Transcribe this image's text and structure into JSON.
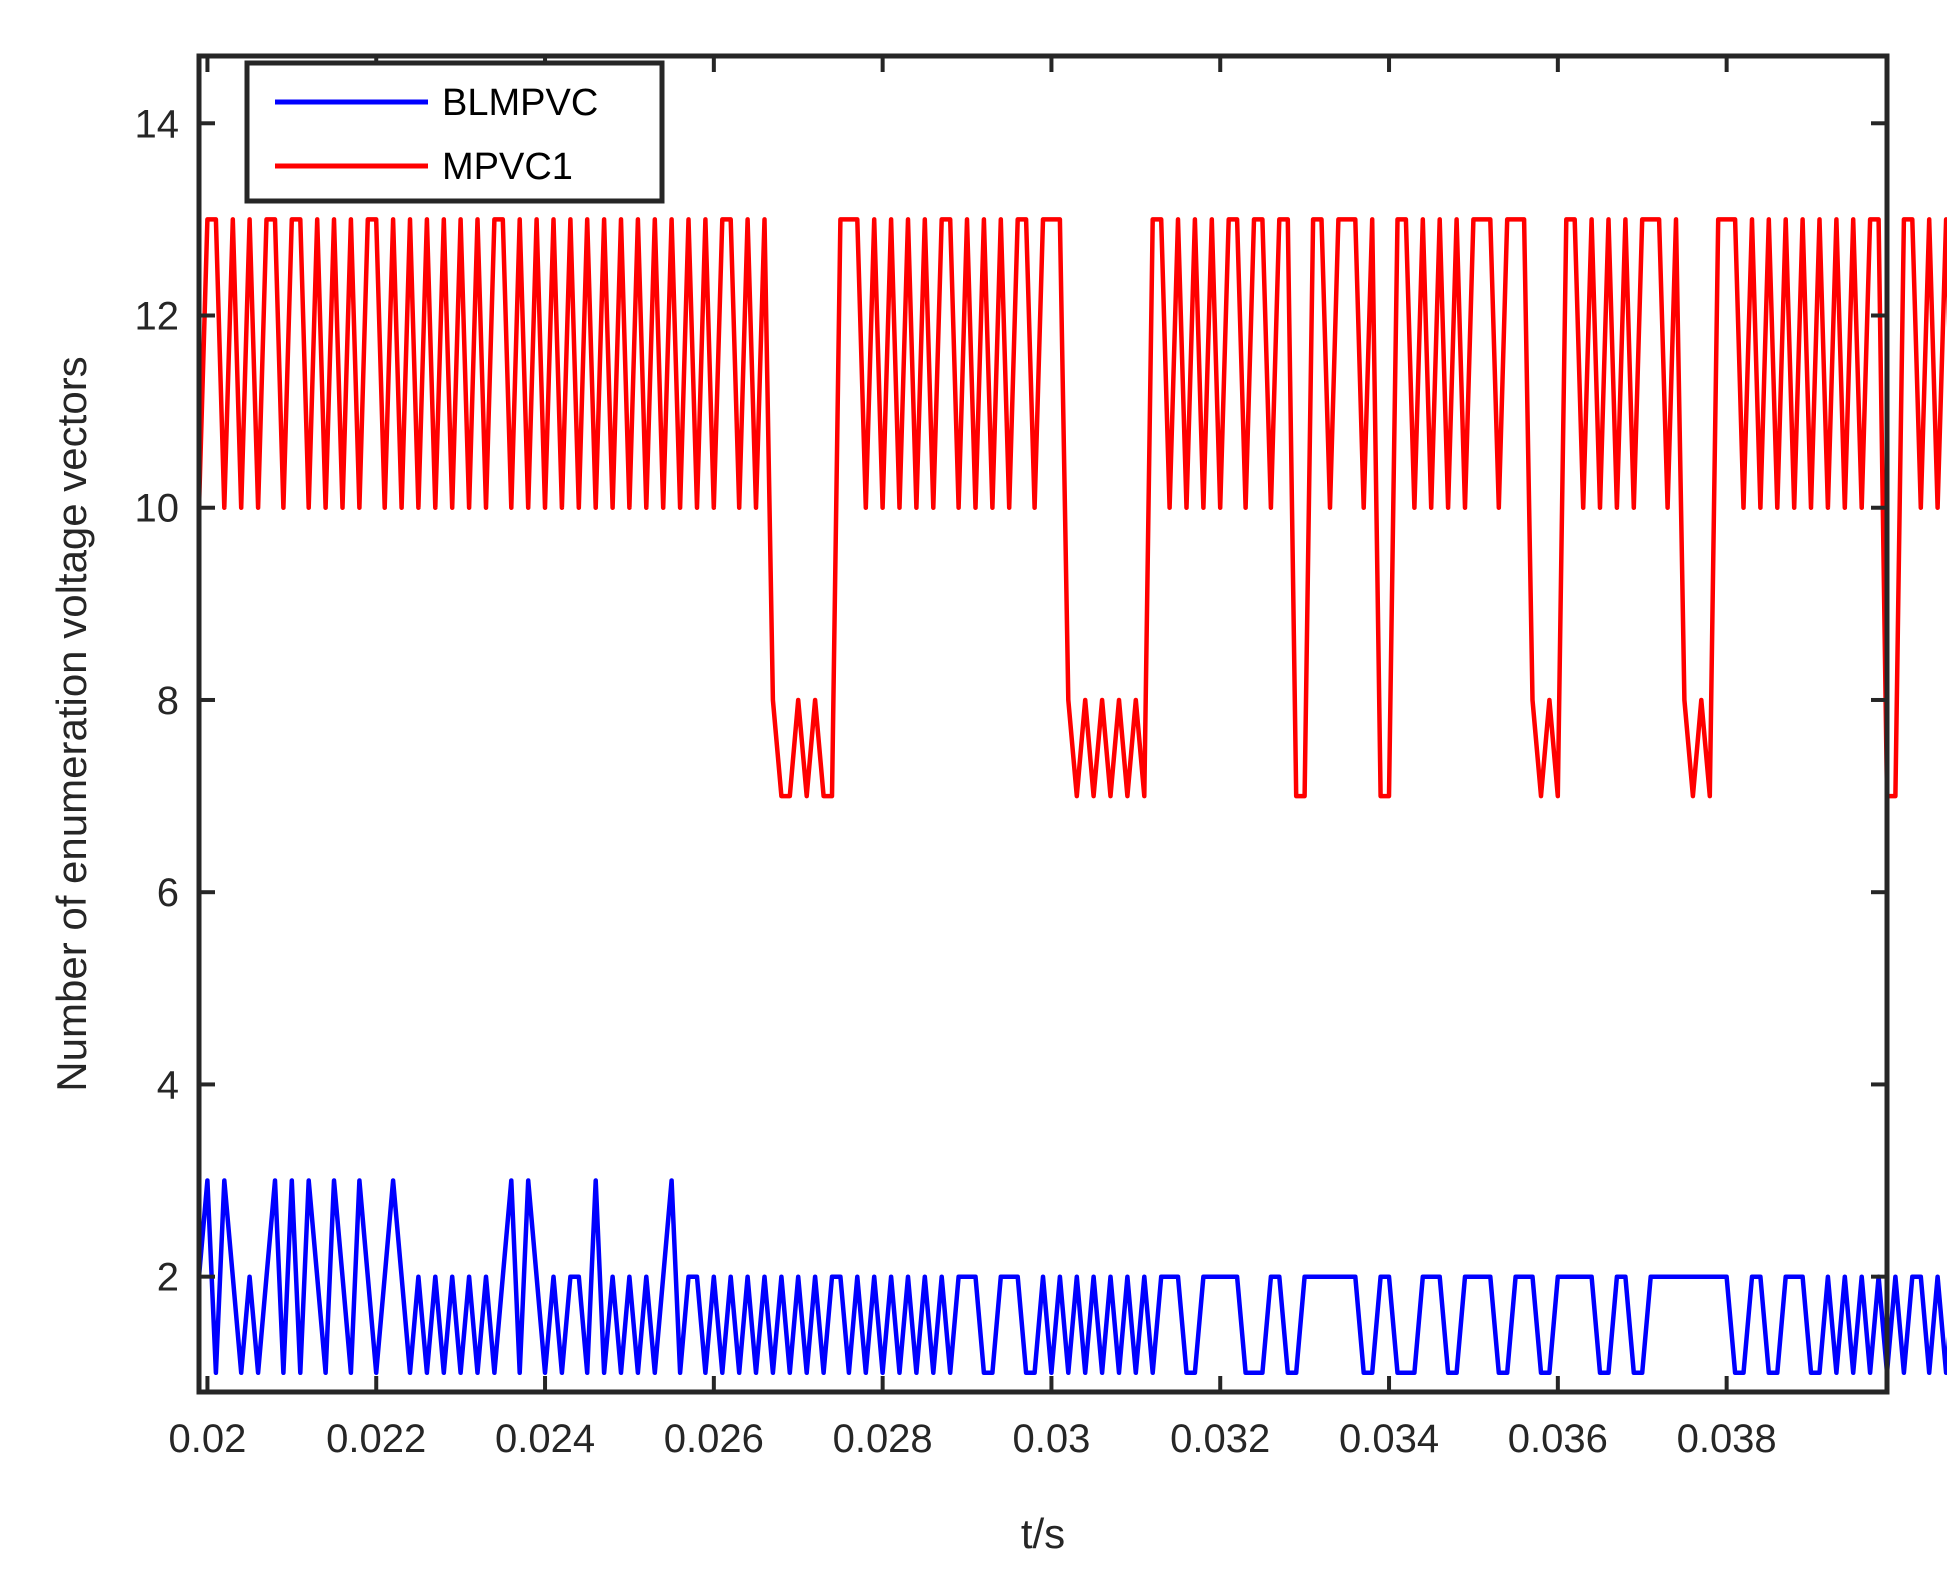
{
  "chart_data": {
    "type": "line",
    "xlabel": "t/s",
    "ylabel": "Number of enumeration voltage vectors",
    "xlim": [
      0.0199,
      0.0399
    ],
    "ylim": [
      0.8,
      14.7
    ],
    "xticks": [
      0.02,
      0.022,
      0.024,
      0.026,
      0.028,
      0.03,
      0.032,
      0.034,
      0.036,
      0.038
    ],
    "xtick_labels": [
      "0.02",
      "0.022",
      "0.024",
      "0.026",
      "0.028",
      "0.03",
      "0.032",
      "0.034",
      "0.036",
      "0.038"
    ],
    "yticks": [
      2,
      4,
      6,
      8,
      10,
      12,
      14
    ],
    "ytick_labels": [
      "2",
      "4",
      "6",
      "8",
      "10",
      "12",
      "14"
    ],
    "grid": false,
    "legend_position": "top-left",
    "sample_period": 0.0001,
    "series": [
      {
        "name": "BLMPVC",
        "color": "#0000ff",
        "x_start": 0.0199,
        "values": [
          2,
          3,
          1,
          3,
          2,
          1,
          2,
          1,
          2,
          3,
          1,
          3,
          1,
          3,
          2,
          1,
          3,
          2,
          1,
          3,
          2,
          1,
          2,
          3,
          2,
          1,
          2,
          1,
          2,
          1,
          2,
          1,
          2,
          1,
          2,
          1,
          2,
          3,
          1,
          3,
          2,
          1,
          2,
          1,
          2,
          2,
          1,
          3,
          1,
          2,
          1,
          2,
          1,
          2,
          1,
          2,
          3,
          1,
          2,
          2,
          1,
          2,
          1,
          2,
          1,
          2,
          1,
          2,
          1,
          2,
          1,
          2,
          1,
          2,
          1,
          2,
          2,
          1,
          2,
          1,
          2,
          1,
          2,
          1,
          2,
          1,
          2,
          1,
          2,
          1,
          2,
          2,
          2,
          1,
          1,
          2,
          2,
          2,
          1,
          1,
          2,
          1,
          2,
          1,
          2,
          1,
          2,
          1,
          2,
          1,
          2,
          1,
          2,
          1,
          2,
          2,
          2,
          1,
          1,
          2,
          2,
          2,
          2,
          2,
          1,
          1,
          1,
          2,
          2,
          1,
          1,
          2,
          2,
          2,
          2,
          2,
          2,
          2,
          1,
          1,
          2,
          2,
          1,
          1,
          1,
          2,
          2,
          2,
          1,
          1,
          2,
          2,
          2,
          2,
          1,
          1,
          2,
          2,
          2,
          1,
          1,
          2,
          2,
          2,
          2,
          2,
          1,
          1,
          2,
          2,
          1,
          1,
          2,
          2,
          2,
          2,
          2,
          2,
          2,
          2,
          2,
          2,
          1,
          1,
          2,
          2,
          1,
          1,
          2,
          2,
          2,
          1,
          1,
          2,
          1,
          2,
          1,
          2,
          1,
          2,
          1,
          2,
          1,
          2,
          2,
          1,
          2,
          1,
          2,
          1,
          3,
          2,
          3,
          1,
          2,
          3,
          1,
          2,
          1,
          2,
          3,
          2,
          1,
          2,
          1,
          2,
          1,
          2,
          2,
          1,
          2,
          1,
          2,
          1,
          2,
          1,
          1,
          2,
          2,
          2,
          2,
          2,
          2,
          2,
          1,
          1,
          2,
          1,
          2,
          1,
          2,
          1,
          2,
          2,
          1,
          1,
          2
        ]
      },
      {
        "name": "MPVC1",
        "color": "#ff0000",
        "x_start": 0.0199,
        "values": [
          10,
          13,
          13,
          10,
          13,
          10,
          13,
          10,
          13,
          13,
          10,
          13,
          13,
          10,
          13,
          10,
          13,
          10,
          13,
          10,
          13,
          13,
          10,
          13,
          10,
          13,
          10,
          13,
          10,
          13,
          10,
          13,
          10,
          13,
          10,
          13,
          13,
          10,
          13,
          10,
          13,
          10,
          13,
          10,
          13,
          10,
          13,
          10,
          13,
          10,
          13,
          10,
          13,
          10,
          13,
          10,
          13,
          10,
          13,
          10,
          13,
          10,
          13,
          13,
          10,
          13,
          10,
          13,
          8,
          7,
          7,
          8,
          7,
          8,
          7,
          7,
          13,
          13,
          13,
          10,
          13,
          10,
          13,
          10,
          13,
          10,
          13,
          10,
          13,
          13,
          10,
          13,
          10,
          13,
          10,
          13,
          10,
          13,
          13,
          10,
          13,
          13,
          13,
          8,
          7,
          8,
          7,
          8,
          7,
          8,
          7,
          8,
          7,
          13,
          13,
          10,
          13,
          10,
          13,
          10,
          13,
          10,
          13,
          13,
          10,
          13,
          13,
          10,
          13,
          13,
          7,
          7,
          13,
          13,
          10,
          13,
          13,
          13,
          10,
          13,
          7,
          7,
          13,
          13,
          10,
          13,
          10,
          13,
          10,
          13,
          10,
          13,
          13,
          13,
          10,
          13,
          13,
          13,
          8,
          7,
          8,
          7,
          13,
          13,
          10,
          13,
          10,
          13,
          10,
          13,
          10,
          13,
          13,
          13,
          10,
          13,
          8,
          7,
          8,
          7,
          13,
          13,
          13,
          10,
          13,
          10,
          13,
          10,
          13,
          10,
          13,
          10,
          13,
          10,
          13,
          10,
          13,
          10,
          13,
          13,
          7,
          7,
          13,
          13,
          10,
          13,
          10,
          13,
          10,
          13,
          10,
          13,
          10,
          13,
          10,
          13,
          10,
          13,
          10,
          13,
          10,
          13,
          10,
          13,
          10,
          13,
          10,
          13,
          10,
          13,
          10,
          13,
          10,
          13,
          10,
          13,
          13
        ]
      }
    ]
  }
}
